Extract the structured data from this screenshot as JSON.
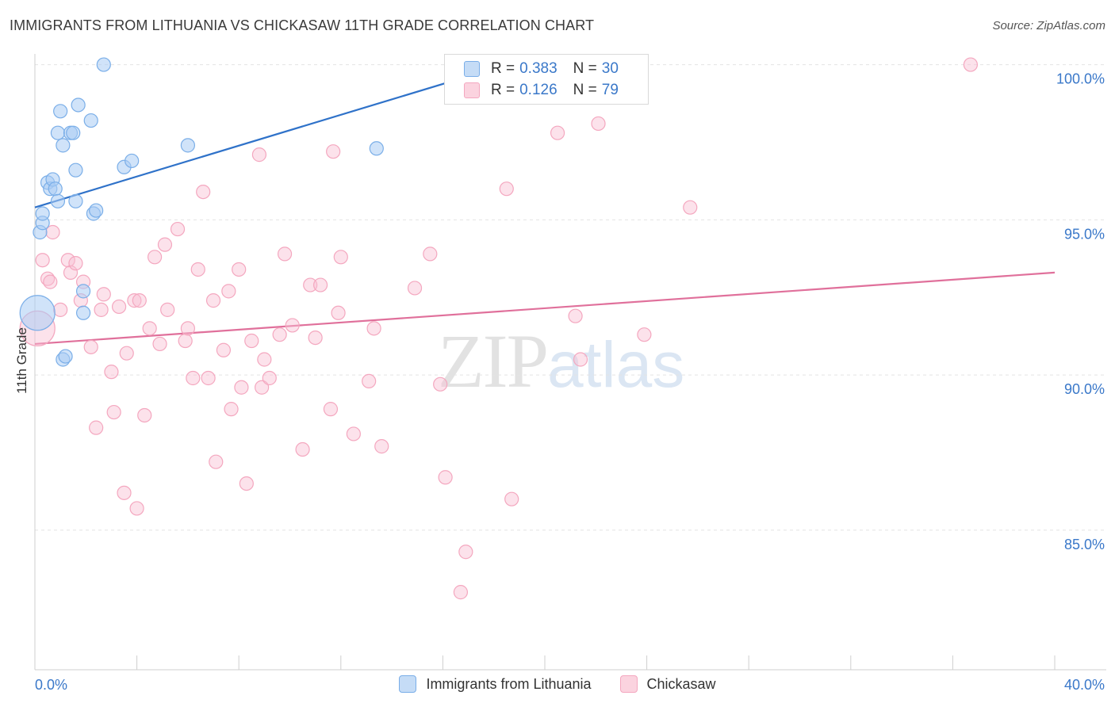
{
  "header": {
    "title": "IMMIGRANTS FROM LITHUANIA VS CHICKASAW 11TH GRADE CORRELATION CHART",
    "source": "Source: ZipAtlas.com"
  },
  "watermark": {
    "zip": "ZIP",
    "atlas": "atlas"
  },
  "legend": {
    "rows": [
      {
        "r_label": "R =",
        "r_value": "0.383",
        "n_label": "N =",
        "n_value": "30"
      },
      {
        "r_label": "R =",
        "r_value": "0.126",
        "n_label": "N =",
        "n_value": "79"
      }
    ]
  },
  "chart_data": {
    "type": "scatter",
    "title": "IMMIGRANTS FROM LITHUANIA VS CHICKASAW 11TH GRADE CORRELATION CHART",
    "xlabel": "",
    "ylabel": "11th Grade",
    "xlim": [
      0,
      40
    ],
    "ylim": [
      80.5,
      100.5
    ],
    "x_tick_labels": [
      "0.0%",
      "40.0%"
    ],
    "y_tick_labels": [
      "100.0%",
      "95.0%",
      "90.0%",
      "85.0%"
    ],
    "y_ticks": [
      100,
      95,
      90,
      85
    ],
    "grid": true,
    "legend_position": "top-center",
    "series": [
      {
        "name": "Immigrants from Lithuania",
        "color": "#7aaee8",
        "line_color": "#2f72c9",
        "trend": {
          "x": [
            0,
            18.5
          ],
          "y": [
            95.4,
            100
          ]
        },
        "points": [
          {
            "x": 0.1,
            "y": 92.0,
            "big": true
          },
          {
            "x": 0.2,
            "y": 94.6
          },
          {
            "x": 0.3,
            "y": 94.9
          },
          {
            "x": 0.3,
            "y": 95.2
          },
          {
            "x": 0.5,
            "y": 96.2
          },
          {
            "x": 0.6,
            "y": 96.0
          },
          {
            "x": 0.7,
            "y": 96.3
          },
          {
            "x": 0.8,
            "y": 96.0
          },
          {
            "x": 0.9,
            "y": 95.6
          },
          {
            "x": 0.9,
            "y": 97.8
          },
          {
            "x": 1.0,
            "y": 98.5
          },
          {
            "x": 1.1,
            "y": 97.4
          },
          {
            "x": 1.1,
            "y": 90.5
          },
          {
            "x": 1.2,
            "y": 90.6
          },
          {
            "x": 1.4,
            "y": 97.8
          },
          {
            "x": 1.5,
            "y": 97.8
          },
          {
            "x": 1.6,
            "y": 96.6
          },
          {
            "x": 1.6,
            "y": 95.6
          },
          {
            "x": 1.7,
            "y": 98.7
          },
          {
            "x": 1.9,
            "y": 92.7
          },
          {
            "x": 1.9,
            "y": 92.0
          },
          {
            "x": 2.2,
            "y": 98.2
          },
          {
            "x": 2.3,
            "y": 95.2
          },
          {
            "x": 2.4,
            "y": 95.3
          },
          {
            "x": 2.7,
            "y": 100.0
          },
          {
            "x": 3.5,
            "y": 96.7
          },
          {
            "x": 3.8,
            "y": 96.9
          },
          {
            "x": 6.0,
            "y": 97.4
          },
          {
            "x": 13.4,
            "y": 97.3
          },
          {
            "x": 18.5,
            "y": 100.0
          }
        ]
      },
      {
        "name": "Chickasaw",
        "color": "#f4a7bf",
        "line_color": "#e0709b",
        "trend": {
          "x": [
            0,
            40
          ],
          "y": [
            91.0,
            93.3
          ]
        },
        "points": [
          {
            "x": 0.1,
            "y": 91.5,
            "big": true
          },
          {
            "x": 0.3,
            "y": 93.7
          },
          {
            "x": 0.5,
            "y": 93.1
          },
          {
            "x": 0.6,
            "y": 93.0
          },
          {
            "x": 0.7,
            "y": 94.6
          },
          {
            "x": 1.0,
            "y": 92.1
          },
          {
            "x": 1.3,
            "y": 93.7
          },
          {
            "x": 1.4,
            "y": 93.3
          },
          {
            "x": 1.6,
            "y": 93.6
          },
          {
            "x": 1.8,
            "y": 92.4
          },
          {
            "x": 1.9,
            "y": 93.0
          },
          {
            "x": 2.2,
            "y": 90.9
          },
          {
            "x": 2.4,
            "y": 88.3
          },
          {
            "x": 2.6,
            "y": 92.1
          },
          {
            "x": 2.7,
            "y": 92.6
          },
          {
            "x": 3.0,
            "y": 90.1
          },
          {
            "x": 3.1,
            "y": 88.8
          },
          {
            "x": 3.3,
            "y": 92.2
          },
          {
            "x": 3.5,
            "y": 86.2
          },
          {
            "x": 3.6,
            "y": 90.7
          },
          {
            "x": 3.9,
            "y": 92.4
          },
          {
            "x": 4.0,
            "y": 85.7
          },
          {
            "x": 4.1,
            "y": 92.4
          },
          {
            "x": 4.3,
            "y": 88.7
          },
          {
            "x": 4.5,
            "y": 91.5
          },
          {
            "x": 4.7,
            "y": 93.8
          },
          {
            "x": 4.9,
            "y": 91.0
          },
          {
            "x": 5.1,
            "y": 94.2
          },
          {
            "x": 5.2,
            "y": 92.1
          },
          {
            "x": 5.6,
            "y": 94.7
          },
          {
            "x": 5.9,
            "y": 91.1
          },
          {
            "x": 6.0,
            "y": 91.5
          },
          {
            "x": 6.2,
            "y": 89.9
          },
          {
            "x": 6.4,
            "y": 93.4
          },
          {
            "x": 6.6,
            "y": 95.9
          },
          {
            "x": 6.8,
            "y": 89.9
          },
          {
            "x": 7.0,
            "y": 92.4
          },
          {
            "x": 7.1,
            "y": 87.2
          },
          {
            "x": 7.4,
            "y": 90.8
          },
          {
            "x": 7.6,
            "y": 92.7
          },
          {
            "x": 7.7,
            "y": 88.9
          },
          {
            "x": 8.0,
            "y": 93.4
          },
          {
            "x": 8.1,
            "y": 89.6
          },
          {
            "x": 8.3,
            "y": 86.5
          },
          {
            "x": 8.5,
            "y": 91.1
          },
          {
            "x": 8.8,
            "y": 97.1
          },
          {
            "x": 8.9,
            "y": 89.6
          },
          {
            "x": 9.0,
            "y": 90.5
          },
          {
            "x": 9.2,
            "y": 89.9
          },
          {
            "x": 9.6,
            "y": 91.3
          },
          {
            "x": 9.8,
            "y": 93.9
          },
          {
            "x": 10.1,
            "y": 91.6
          },
          {
            "x": 10.5,
            "y": 87.6
          },
          {
            "x": 10.8,
            "y": 92.9
          },
          {
            "x": 11.0,
            "y": 91.2
          },
          {
            "x": 11.2,
            "y": 92.9
          },
          {
            "x": 11.6,
            "y": 88.9
          },
          {
            "x": 11.7,
            "y": 97.2
          },
          {
            "x": 11.9,
            "y": 92.0
          },
          {
            "x": 12.0,
            "y": 93.8
          },
          {
            "x": 12.5,
            "y": 88.1
          },
          {
            "x": 13.1,
            "y": 89.8
          },
          {
            "x": 13.3,
            "y": 91.5
          },
          {
            "x": 13.6,
            "y": 87.7
          },
          {
            "x": 14.9,
            "y": 92.8
          },
          {
            "x": 15.5,
            "y": 93.9
          },
          {
            "x": 15.9,
            "y": 89.7
          },
          {
            "x": 16.1,
            "y": 86.7
          },
          {
            "x": 16.7,
            "y": 83.0
          },
          {
            "x": 16.9,
            "y": 84.3
          },
          {
            "x": 18.5,
            "y": 96.0
          },
          {
            "x": 18.7,
            "y": 86.0
          },
          {
            "x": 20.5,
            "y": 97.8
          },
          {
            "x": 21.2,
            "y": 91.9
          },
          {
            "x": 21.4,
            "y": 90.5
          },
          {
            "x": 22.1,
            "y": 98.1
          },
          {
            "x": 23.9,
            "y": 91.3
          },
          {
            "x": 25.7,
            "y": 95.4
          },
          {
            "x": 36.7,
            "y": 100.0
          }
        ]
      }
    ]
  }
}
